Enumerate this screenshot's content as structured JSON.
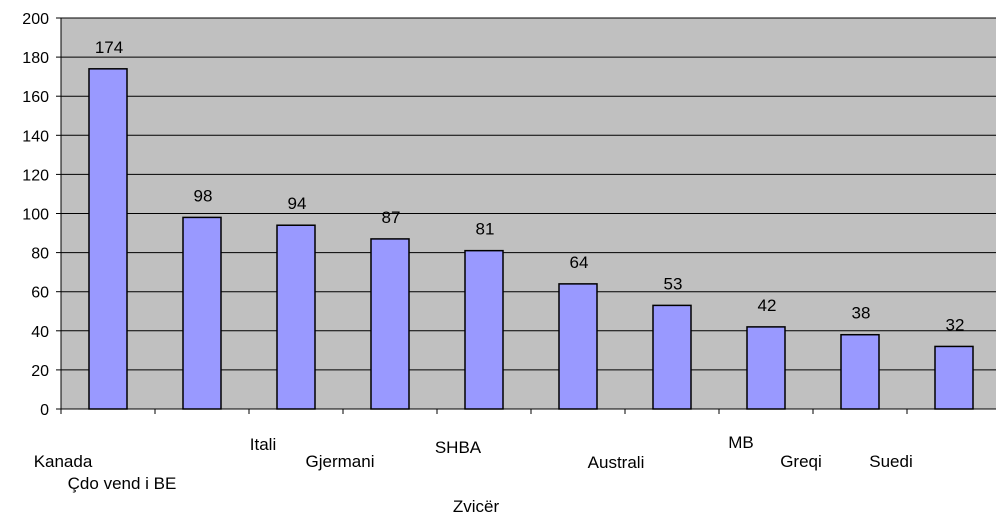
{
  "chart_data": {
    "type": "bar",
    "categories": [
      "Kanada",
      "Çdo vend i BE",
      "Itali",
      "Gjermani",
      "Zvicër",
      "SHBA",
      "Australi",
      "MB",
      "Greqi",
      "Suedi"
    ],
    "values": [
      174,
      98,
      94,
      87,
      81,
      64,
      53,
      42,
      38,
      32
    ],
    "data_labels": [
      "174",
      "98",
      "94",
      "87",
      "81",
      "64",
      "53",
      "42",
      "38",
      "32"
    ],
    "y_ticks": [
      "0",
      "20",
      "40",
      "60",
      "80",
      "100",
      "120",
      "140",
      "160",
      "180",
      "200"
    ],
    "ylim": [
      0,
      200
    ],
    "title": "",
    "xlabel": "",
    "ylabel": "",
    "grid": true,
    "colors": {
      "bar_fill": "#9999ff",
      "bar_stroke": "#000000",
      "plot_background": "#c0c0c0",
      "gridline": "#000000"
    }
  }
}
